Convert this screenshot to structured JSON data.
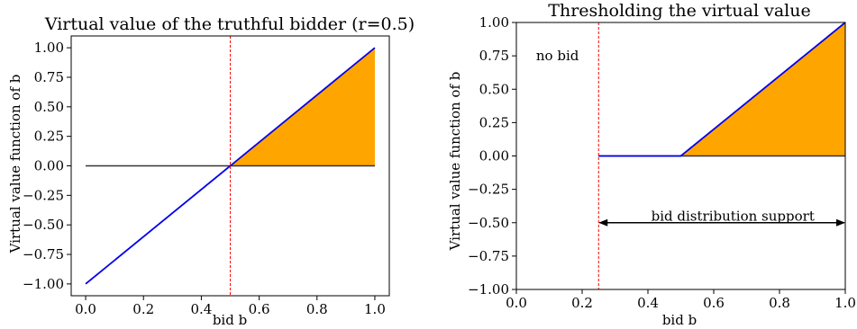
{
  "chart_data": [
    {
      "type": "line",
      "title": "Virtual value of the truthful bidder (r=0.5)",
      "xlabel": "bid b",
      "ylabel": "Virtual value function of b",
      "xlim": [
        -0.05,
        1.05
      ],
      "ylim": [
        -1.1,
        1.1
      ],
      "xticks": [
        "0.0",
        "0.2",
        "0.4",
        "0.6",
        "0.8",
        "1.0"
      ],
      "xtick_values": [
        0.0,
        0.2,
        0.4,
        0.6,
        0.8,
        1.0
      ],
      "yticks": [
        "1.00",
        "0.75",
        "0.50",
        "0.25",
        "0.00",
        "−0.25",
        "−0.50",
        "−0.75",
        "−1.00"
      ],
      "ytick_values": [
        1.0,
        0.75,
        0.5,
        0.25,
        0.0,
        -0.25,
        -0.5,
        -0.75,
        -1.0
      ],
      "grid": false,
      "series": [
        {
          "color": "#0000ee",
          "x": [
            0.0,
            1.0
          ],
          "y": [
            -1.0,
            1.0
          ]
        },
        {
          "color": "#333333",
          "x": [
            0.0,
            1.0
          ],
          "y": [
            0.0,
            0.0
          ]
        }
      ],
      "fill": {
        "color": "#ffa500",
        "x": [
          0.5,
          1.0
        ],
        "y_lower": [
          0.0,
          0.0
        ],
        "y_upper": [
          0.0,
          1.0
        ]
      },
      "vlines": [
        {
          "x": 0.5,
          "color": "#ff0000",
          "style": "dashed"
        }
      ]
    },
    {
      "type": "line",
      "title": "Thresholding the virtual value",
      "xlabel": "bid b",
      "ylabel": "Virtual value function of b",
      "xlim": [
        0.0,
        1.0
      ],
      "ylim": [
        -1.0,
        1.0
      ],
      "xticks": [
        "0.0",
        "0.2",
        "0.4",
        "0.6",
        "0.8",
        "1.0"
      ],
      "xtick_values": [
        0.0,
        0.2,
        0.4,
        0.6,
        0.8,
        1.0
      ],
      "yticks": [
        "1.00",
        "0.75",
        "0.50",
        "0.25",
        "0.00",
        "−0.25",
        "−0.50",
        "−0.75",
        "−1.00"
      ],
      "ytick_values": [
        1.0,
        0.75,
        0.5,
        0.25,
        0.0,
        -0.25,
        -0.5,
        -0.75,
        -1.0
      ],
      "grid": false,
      "series": [
        {
          "color": "#0000ee",
          "x": [
            0.25,
            0.5,
            1.0
          ],
          "y": [
            0.0,
            0.0,
            1.0
          ]
        },
        {
          "color": "#333333",
          "x": [
            0.25,
            1.0
          ],
          "y": [
            0.0,
            0.0
          ]
        }
      ],
      "fill": {
        "color": "#ffa500",
        "x": [
          0.5,
          1.0
        ],
        "y_lower": [
          0.0,
          0.0
        ],
        "y_upper": [
          0.0,
          1.0
        ]
      },
      "vlines": [
        {
          "x": 0.25,
          "color": "#ff0000",
          "style": "dashed"
        }
      ],
      "annotations": [
        {
          "text": "no bid",
          "x": 0.06,
          "y": 0.75
        },
        {
          "text": "bid distribution support",
          "x": 0.41,
          "y": -0.45
        }
      ],
      "arrow": {
        "x_start": 0.25,
        "x_end": 1.0,
        "y": -0.5,
        "both_ends": true
      }
    }
  ]
}
